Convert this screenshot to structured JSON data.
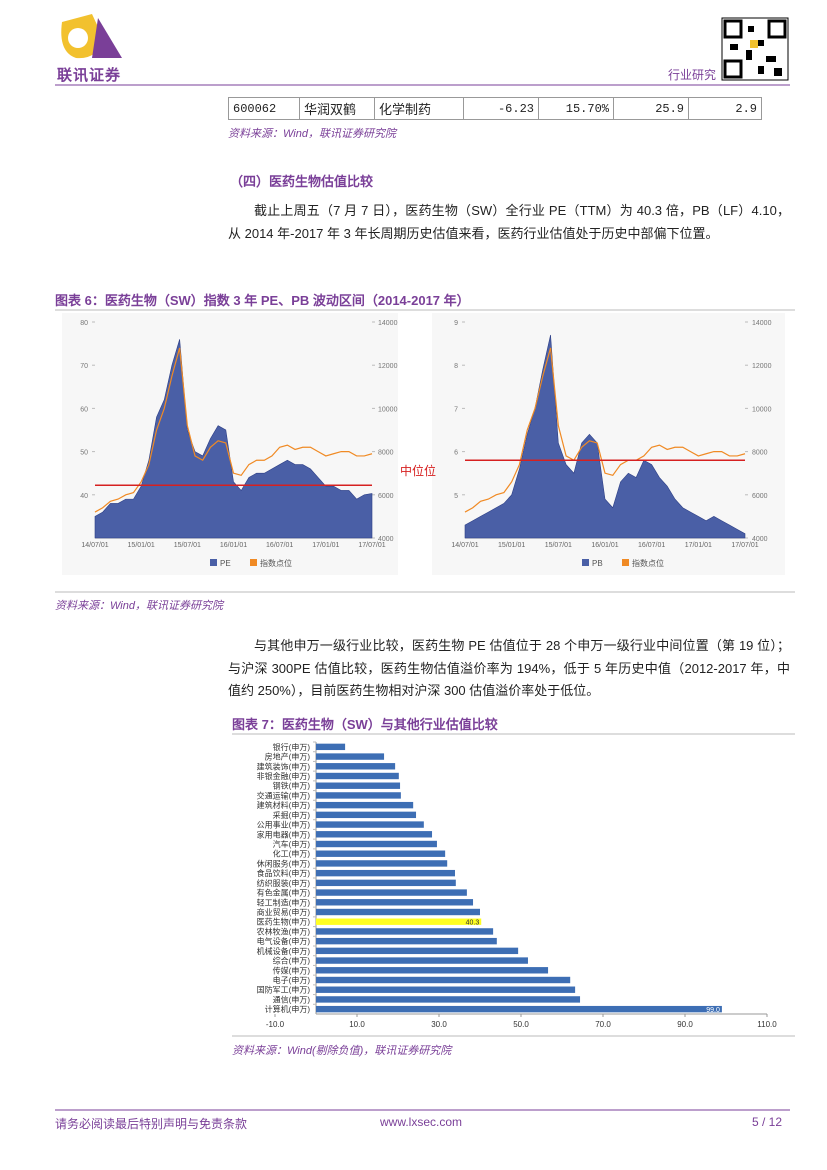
{
  "header": {
    "brand": "联讯证券",
    "section": "行业研究"
  },
  "table": {
    "rows": [
      [
        "600062",
        "华润双鹤",
        "化学制药",
        "-6.23",
        "15.70%",
        "25.9",
        "2.9"
      ]
    ]
  },
  "source_1": "资料来源：Wind，联讯证券研究院",
  "heading": "（四）医药生物估值比较",
  "paragraph_1": "截止上周五（7 月 7 日），医药生物（SW）全行业 PE（TTM）为 40.3 倍，PB（LF）4.10，从 2014 年-2017 年 3 年长周期历史估值来看，医药行业估值处于历史中部偏下位置。",
  "figure_6_title": "图表 6：医药生物（SW）指数 3 年 PE、PB 波动区间（2014-2017 年）",
  "source_2": "资料来源：Wind，联讯证券研究院",
  "paragraph_2": "与其他申万一级行业比较，医药生物 PE 估值位于 28 个申万一级行业中间位置（第 19 位）；与沪深 300PE 估值比较，医药生物估值溢价率为 194%，低于 5 年历史中值（2012-2017 年，中值约 250%），目前医药生物相对沪深 300 估值溢价率处于低位。",
  "figure_7_title": "图表 7：医药生物（SW）与其他行业估值比较",
  "source_3": "资料来源：Wind(剔除负值)，联讯证券研究院",
  "footer": {
    "disclaimer": "请务必阅读最后特别声明与免责条款",
    "url": "www.lxsec.com",
    "page": "5 / 12"
  },
  "chart_data": [
    {
      "type": "area",
      "annotation": "中位位",
      "median": 42.2,
      "median_color": "#d62020",
      "x": [
        "14/07/01",
        "14/08/01",
        "14/09/01",
        "14/10/01",
        "14/11/01",
        "14/12/01",
        "15/01/01",
        "15/02/01",
        "15/03/01",
        "15/04/01",
        "15/05/01",
        "15/06/01",
        "15/07/01",
        "15/08/01",
        "15/09/01",
        "15/10/01",
        "15/11/01",
        "15/12/01",
        "16/01/01",
        "16/02/01",
        "16/03/01",
        "16/04/01",
        "16/05/01",
        "16/06/01",
        "16/07/01",
        "16/08/01",
        "16/09/01",
        "16/10/01",
        "16/11/01",
        "16/12/01",
        "17/01/01",
        "17/02/01",
        "17/03/01",
        "17/04/01",
        "17/05/01",
        "17/06/01",
        "17/07/01"
      ],
      "xticks": [
        "14/07/01",
        "15/01/01",
        "15/07/01",
        "16/01/01",
        "16/07/01",
        "17/01/01",
        "17/07/01"
      ],
      "ylim": [
        30,
        80
      ],
      "yticks": [
        40,
        50,
        60,
        70,
        80
      ],
      "y2lim": [
        4000,
        14000
      ],
      "y2ticks": [
        4000,
        6000,
        8000,
        10000,
        12000,
        14000
      ],
      "series": [
        {
          "name": "PE",
          "kind": "area",
          "color": "#4a5fa6",
          "values": [
            35,
            36,
            38,
            38,
            39,
            39,
            42,
            48,
            58,
            62,
            70,
            76,
            55,
            50,
            49,
            53,
            56,
            55,
            43,
            41,
            44,
            45,
            45,
            46,
            47,
            48,
            47,
            47,
            46,
            44,
            42,
            42,
            41,
            41,
            39,
            40,
            40.3
          ]
        },
        {
          "name": "指数点位",
          "kind": "line",
          "axis": "y2",
          "color": "#f08a24",
          "values": [
            5200,
            5400,
            5700,
            5800,
            6000,
            6100,
            6600,
            7400,
            9000,
            10000,
            11500,
            12800,
            9200,
            7800,
            7600,
            8200,
            8500,
            8400,
            7000,
            6900,
            7400,
            7600,
            7600,
            7800,
            8200,
            8300,
            8100,
            8200,
            8200,
            8000,
            7800,
            7900,
            8000,
            8000,
            7800,
            7800,
            7900
          ]
        }
      ]
    },
    {
      "type": "area",
      "median": 5.8,
      "median_color": "#d62020",
      "x": [
        "14/07/01",
        "14/08/01",
        "14/09/01",
        "14/10/01",
        "14/11/01",
        "14/12/01",
        "15/01/01",
        "15/02/01",
        "15/03/01",
        "15/04/01",
        "15/05/01",
        "15/06/01",
        "15/07/01",
        "15/08/01",
        "15/09/01",
        "15/10/01",
        "15/11/01",
        "15/12/01",
        "16/01/01",
        "16/02/01",
        "16/03/01",
        "16/04/01",
        "16/05/01",
        "16/06/01",
        "16/07/01",
        "16/08/01",
        "16/09/01",
        "16/10/01",
        "16/11/01",
        "16/12/01",
        "17/01/01",
        "17/02/01",
        "17/03/01",
        "17/04/01",
        "17/05/01",
        "17/06/01",
        "17/07/01"
      ],
      "xticks": [
        "14/07/01",
        "15/01/01",
        "15/07/01",
        "16/01/01",
        "16/07/01",
        "17/01/01",
        "17/07/01"
      ],
      "ylim": [
        4,
        9
      ],
      "yticks": [
        5,
        6,
        7,
        8,
        9
      ],
      "y2lim": [
        4000,
        14000
      ],
      "y2ticks": [
        4000,
        6000,
        8000,
        10000,
        12000,
        14000
      ],
      "series": [
        {
          "name": "PB",
          "kind": "area",
          "color": "#4a5fa6",
          "values": [
            4.3,
            4.4,
            4.5,
            4.6,
            4.7,
            4.8,
            5.0,
            5.6,
            6.4,
            7.0,
            7.9,
            8.7,
            6.2,
            5.7,
            5.5,
            6.2,
            6.4,
            6.2,
            4.9,
            4.7,
            5.3,
            5.5,
            5.4,
            5.8,
            5.7,
            5.4,
            5.2,
            4.9,
            4.7,
            4.6,
            4.5,
            4.4,
            4.5,
            4.4,
            4.3,
            4.2,
            4.1
          ]
        },
        {
          "name": "指数点位",
          "kind": "line",
          "axis": "y2",
          "color": "#f08a24",
          "values": [
            5200,
            5400,
            5700,
            5800,
            6000,
            6100,
            6600,
            7400,
            9000,
            10000,
            11500,
            12800,
            9200,
            7800,
            7600,
            8200,
            8500,
            8400,
            7000,
            6900,
            7400,
            7600,
            7600,
            7800,
            8200,
            8300,
            8100,
            8200,
            8200,
            8000,
            7800,
            7900,
            8000,
            8000,
            7800,
            7800,
            7900
          ]
        }
      ]
    },
    {
      "type": "bar",
      "orientation": "horizontal",
      "categories": [
        "银行(申万)",
        "房地产(申万)",
        "建筑装饰(申万)",
        "非银金融(申万)",
        "钢铁(申万)",
        "交通运输(申万)",
        "建筑材料(申万)",
        "采掘(申万)",
        "公用事业(申万)",
        "家用电器(申万)",
        "汽车(申万)",
        "化工(申万)",
        "休闲服务(申万)",
        "食品饮料(申万)",
        "纺织服装(申万)",
        "有色金属(申万)",
        "轻工制造(申万)",
        "商业贸易(申万)",
        "医药生物(申万)",
        "农林牧渔(申万)",
        "电气设备(申万)",
        "机械设备(申万)",
        "综合(申万)",
        "传媒(申万)",
        "电子(申万)",
        "国防军工(申万)",
        "通信(申万)",
        "计算机(申万)"
      ],
      "values": [
        7.1,
        16.6,
        19.3,
        20.2,
        20.5,
        20.7,
        23.7,
        24.4,
        26.3,
        28.3,
        29.5,
        31.5,
        32,
        33.9,
        34.1,
        36.8,
        38.3,
        40,
        40.3,
        43.2,
        44.1,
        49.3,
        51.7,
        56.6,
        62,
        63.2,
        64.4,
        99
      ],
      "value_labels": [
        null,
        null,
        null,
        null,
        null,
        null,
        null,
        null,
        null,
        null,
        null,
        null,
        null,
        null,
        null,
        null,
        null,
        null,
        "40.3",
        null,
        null,
        null,
        null,
        null,
        null,
        null,
        null,
        "99.0"
      ],
      "colors": [
        "#3d6eb4",
        "#3d6eb4",
        "#3d6eb4",
        "#3d6eb4",
        "#3d6eb4",
        "#3d6eb4",
        "#3d6eb4",
        "#3d6eb4",
        "#3d6eb4",
        "#3d6eb4",
        "#3d6eb4",
        "#3d6eb4",
        "#3d6eb4",
        "#3d6eb4",
        "#3d6eb4",
        "#3d6eb4",
        "#3d6eb4",
        "#3d6eb4",
        "#ffff22",
        "#3d6eb4",
        "#3d6eb4",
        "#3d6eb4",
        "#3d6eb4",
        "#3d6eb4",
        "#3d6eb4",
        "#3d6eb4",
        "#3d6eb4",
        "#3d6eb4"
      ],
      "xlim": [
        -10,
        110
      ],
      "xticks": [
        {
          "value": -10,
          "label": "-10.0"
        },
        {
          "value": 10,
          "label": "10.0"
        },
        {
          "value": 30,
          "label": "30.0"
        },
        {
          "value": 50,
          "label": "50.0"
        },
        {
          "value": 70,
          "label": "70.0"
        },
        {
          "value": 90,
          "label": "90.0"
        },
        {
          "value": 110,
          "label": "110.0"
        }
      ]
    }
  ]
}
